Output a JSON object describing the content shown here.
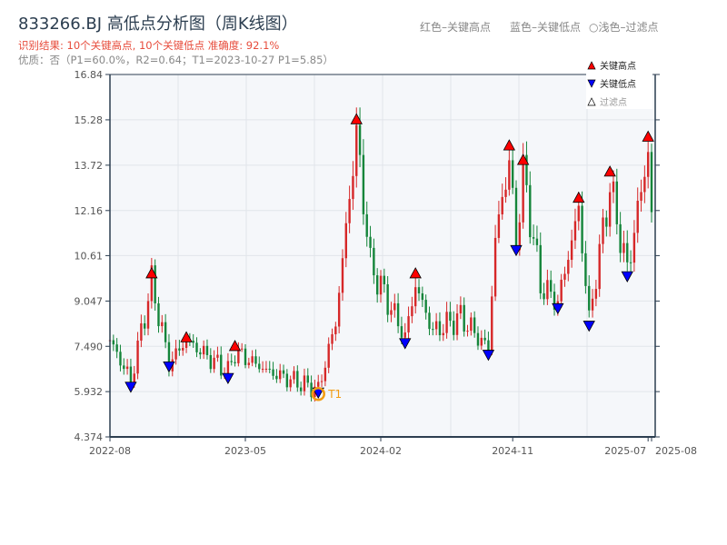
{
  "chart_data": {
    "type": "candlestick",
    "title": "833266.BJ 高低点分析图（周K线图）",
    "subtitle": "识别结果: 10个关键高点, 10个关键低点   准确度: 92.1%",
    "quality_line": "优质：否（P1=60.0%，R2=0.64；T1=2023-10-27 P1=5.85）",
    "color_hints": [
      "红色–关键高点",
      "蓝色–关键低点",
      "○浅色–过滤点"
    ],
    "legend": [
      {
        "label": "关键高点",
        "color": "#ff0000",
        "marker": "triangle-up"
      },
      {
        "label": "关键低点",
        "color": "#0000ff",
        "marker": "triangle-down"
      },
      {
        "label": "过滤点",
        "color": "#ffffff",
        "marker": "triangle-up-hollow"
      }
    ],
    "ylim": [
      4.374,
      16.84
    ],
    "yticks": [
      "16.84",
      "15.28",
      "13.72",
      "12.16",
      "10.61",
      "9.047",
      "7.490",
      "5.932",
      "4.374"
    ],
    "yticks_values": [
      16.84,
      15.28,
      13.72,
      12.16,
      10.61,
      9.047,
      7.49,
      5.932,
      4.374
    ],
    "xticks": [
      {
        "label": "2022-08",
        "week": 0
      },
      {
        "label": "2023-05",
        "week": 39
      },
      {
        "label": "2024-02",
        "week": 78
      },
      {
        "label": "2024-11",
        "week": 116
      },
      {
        "label": "2025-07",
        "week": 155
      },
      {
        "label": "2025-08",
        "week": 156
      }
    ],
    "weeks": 157,
    "price_path": [
      [
        0,
        7.7
      ],
      [
        6,
        6.3
      ],
      [
        12,
        9.7
      ],
      [
        17,
        6.9
      ],
      [
        22,
        7.7
      ],
      [
        34,
        6.6
      ],
      [
        36,
        7.3
      ],
      [
        46,
        6.6
      ],
      [
        60,
        6.0
      ],
      [
        65,
        8.3
      ],
      [
        71,
        14.8
      ],
      [
        75,
        10.3
      ],
      [
        85,
        7.8
      ],
      [
        88,
        9.6
      ],
      [
        93,
        8.0
      ],
      [
        101,
        8.5
      ],
      [
        109,
        7.4
      ],
      [
        111,
        11.2
      ],
      [
        115,
        13.9
      ],
      [
        117,
        11.0
      ],
      [
        119,
        13.5
      ],
      [
        124,
        9.6
      ],
      [
        129,
        9.0
      ],
      [
        135,
        12.2
      ],
      [
        138,
        8.4
      ],
      [
        144,
        13.0
      ],
      [
        149,
        10.1
      ],
      [
        155,
        14.2
      ],
      [
        156,
        12.0
      ]
    ],
    "key_highs": [
      [
        12,
        10.0
      ],
      [
        22,
        7.8
      ],
      [
        36,
        7.5
      ],
      [
        71,
        15.3
      ],
      [
        88,
        10.0
      ],
      [
        115,
        14.4
      ],
      [
        119,
        13.9
      ],
      [
        135,
        12.6
      ],
      [
        144,
        13.5
      ],
      [
        155,
        14.7
      ]
    ],
    "key_lows": [
      [
        6,
        6.1
      ],
      [
        17,
        6.8
      ],
      [
        34,
        6.4
      ],
      [
        60,
        5.9
      ],
      [
        85,
        7.6
      ],
      [
        109,
        7.2
      ],
      [
        117,
        10.8
      ],
      [
        129,
        8.8
      ],
      [
        138,
        8.2
      ],
      [
        149,
        9.9
      ]
    ],
    "annotation": {
      "label": "T1",
      "week": 60,
      "price": 5.85
    },
    "colors": {
      "up": "#d62728",
      "down": "#14853a",
      "high": "#ff0000",
      "low": "#0000ff",
      "t1": "#f39c12"
    }
  }
}
